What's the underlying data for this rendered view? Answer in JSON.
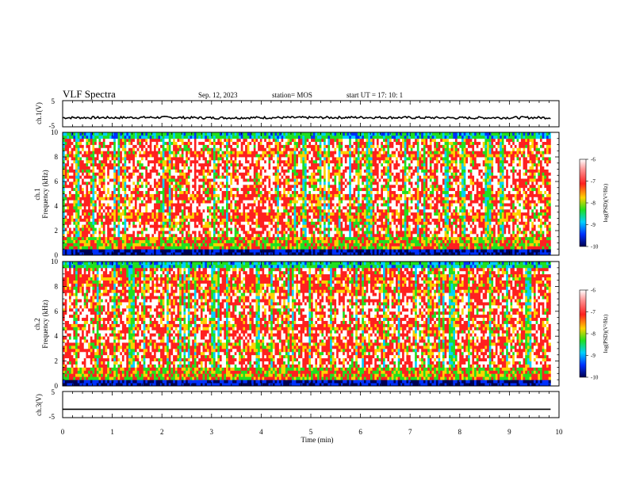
{
  "header": {
    "title": "VLF Spectra",
    "date": "Sep. 12, 2023",
    "station": "station= MOS",
    "start_ut": "start  UT =   17: 10: 1"
  },
  "chart_data": [
    {
      "type": "line",
      "panel": "ch1-waveform",
      "ylabel": "ch.1(V)",
      "ylim": [
        -5,
        5
      ],
      "ytick_labels": [
        "5",
        "-5"
      ],
      "series": [
        {
          "values": [
            -1.5,
            -1.5,
            -1.4,
            -1.6,
            -1.5,
            -1.5,
            -1.4,
            -1.5,
            -1.6,
            -1.5,
            -1.5
          ]
        }
      ],
      "x": [
        0,
        1,
        2,
        3,
        4,
        5,
        6,
        7,
        8,
        9,
        9.83
      ]
    },
    {
      "type": "heatmap",
      "panel": "ch1-spectrogram",
      "ylabel": "ch.1\nFrequency (kHz)",
      "ylim": [
        0,
        10
      ],
      "xlim": [
        0,
        10
      ],
      "ytick_labels": [
        "0",
        "2",
        "4",
        "6",
        "8",
        "10"
      ],
      "colorbar": {
        "label": "log(PSD)(V²/Hz)",
        "range": [
          -10,
          -6
        ],
        "tick_labels": [
          "-6",
          "-7",
          "-8",
          "-9",
          "-10"
        ],
        "colors": [
          "#ffffff",
          "#ff2020",
          "#ffd200",
          "#20e020",
          "#00d0ff",
          "#0030ff",
          "#000050"
        ]
      }
    },
    {
      "type": "heatmap",
      "panel": "ch2-spectrogram",
      "ylabel": "ch.2\nFrequency (kHz)",
      "ylim": [
        0,
        10
      ],
      "xlim": [
        0,
        10
      ],
      "ytick_labels": [
        "0",
        "2",
        "4",
        "6",
        "8",
        "10"
      ],
      "colorbar": {
        "label": "log(PSD)(V²/Hz)",
        "range": [
          -10,
          -6
        ],
        "tick_labels": [
          "-6",
          "-7",
          "-8",
          "-9",
          "-10"
        ],
        "colors": [
          "#ffffff",
          "#ff2020",
          "#ffd200",
          "#20e020",
          "#00d0ff",
          "#0030ff",
          "#000050"
        ]
      }
    },
    {
      "type": "line",
      "panel": "ch3-waveform",
      "ylabel": "ch.3(V)",
      "ylim": [
        -5,
        5
      ],
      "ytick_labels": [
        "5",
        "-5"
      ],
      "series": [
        {
          "values": [
            -1.8,
            -1.8,
            -1.8,
            -1.8,
            -1.8,
            -1.8,
            -1.8,
            -1.8,
            -1.8,
            -1.8,
            -1.8
          ]
        }
      ],
      "x": [
        0,
        1,
        2,
        3,
        4,
        5,
        6,
        7,
        8,
        9,
        9.83
      ],
      "xlabel": "Time (min)",
      "xlim": [
        0,
        10
      ],
      "xtick_labels": [
        "0",
        "1",
        "2",
        "3",
        "4",
        "5",
        "6",
        "7",
        "8",
        "9",
        "10"
      ]
    }
  ]
}
